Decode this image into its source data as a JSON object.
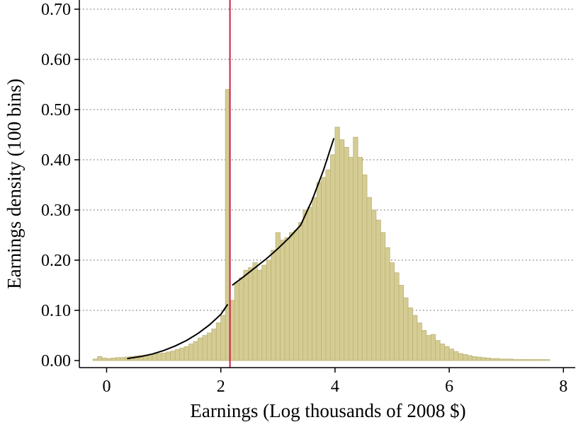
{
  "chart_data": {
    "type": "bar",
    "xlabel": "Earnings (Log thousands of 2008 $)",
    "ylabel": "Earnings density (100 bins)",
    "xlim": [
      -0.3,
      7.9
    ],
    "ylim": [
      -0.01,
      0.725
    ],
    "x_ticks": [
      "0",
      "2",
      "4",
      "6",
      "8"
    ],
    "y_ticks": [
      "0.00",
      "0.10",
      "0.20",
      "0.30",
      "0.40",
      "0.50",
      "0.60",
      "0.70"
    ],
    "grid": "horizontal dotted",
    "bin_width": 0.08,
    "bar_color": "#d4cc92",
    "bar_edge_color": "#bdb47a",
    "kink_line": {
      "x": 2.16,
      "color": "#cc1f4a"
    },
    "bins": [
      {
        "x": -0.2,
        "y": 0.003
      },
      {
        "x": -0.12,
        "y": 0.008
      },
      {
        "x": -0.04,
        "y": 0.005
      },
      {
        "x": 0.04,
        "y": 0.004
      },
      {
        "x": 0.12,
        "y": 0.005
      },
      {
        "x": 0.2,
        "y": 0.006
      },
      {
        "x": 0.28,
        "y": 0.006
      },
      {
        "x": 0.36,
        "y": 0.007
      },
      {
        "x": 0.44,
        "y": 0.008
      },
      {
        "x": 0.52,
        "y": 0.009
      },
      {
        "x": 0.6,
        "y": 0.01
      },
      {
        "x": 0.68,
        "y": 0.011
      },
      {
        "x": 0.76,
        "y": 0.012
      },
      {
        "x": 0.84,
        "y": 0.013
      },
      {
        "x": 0.92,
        "y": 0.014
      },
      {
        "x": 1.0,
        "y": 0.015
      },
      {
        "x": 1.08,
        "y": 0.017
      },
      {
        "x": 1.16,
        "y": 0.019
      },
      {
        "x": 1.24,
        "y": 0.022
      },
      {
        "x": 1.32,
        "y": 0.025
      },
      {
        "x": 1.4,
        "y": 0.028
      },
      {
        "x": 1.48,
        "y": 0.033
      },
      {
        "x": 1.56,
        "y": 0.038
      },
      {
        "x": 1.64,
        "y": 0.045
      },
      {
        "x": 1.72,
        "y": 0.05
      },
      {
        "x": 1.8,
        "y": 0.055
      },
      {
        "x": 1.88,
        "y": 0.063
      },
      {
        "x": 1.96,
        "y": 0.075
      },
      {
        "x": 2.04,
        "y": 0.09
      },
      {
        "x": 2.12,
        "y": 0.54
      },
      {
        "x": 2.2,
        "y": 0.12
      },
      {
        "x": 2.28,
        "y": 0.155
      },
      {
        "x": 2.36,
        "y": 0.165
      },
      {
        "x": 2.44,
        "y": 0.18
      },
      {
        "x": 2.52,
        "y": 0.185
      },
      {
        "x": 2.6,
        "y": 0.195
      },
      {
        "x": 2.68,
        "y": 0.18
      },
      {
        "x": 2.76,
        "y": 0.19
      },
      {
        "x": 2.84,
        "y": 0.2
      },
      {
        "x": 2.92,
        "y": 0.22
      },
      {
        "x": 3.0,
        "y": 0.255
      },
      {
        "x": 3.08,
        "y": 0.24
      },
      {
        "x": 3.16,
        "y": 0.245
      },
      {
        "x": 3.24,
        "y": 0.255
      },
      {
        "x": 3.32,
        "y": 0.26
      },
      {
        "x": 3.4,
        "y": 0.275
      },
      {
        "x": 3.48,
        "y": 0.3
      },
      {
        "x": 3.56,
        "y": 0.305
      },
      {
        "x": 3.64,
        "y": 0.325
      },
      {
        "x": 3.72,
        "y": 0.355
      },
      {
        "x": 3.8,
        "y": 0.365
      },
      {
        "x": 3.88,
        "y": 0.38
      },
      {
        "x": 3.96,
        "y": 0.41
      },
      {
        "x": 4.04,
        "y": 0.465
      },
      {
        "x": 4.12,
        "y": 0.44
      },
      {
        "x": 4.2,
        "y": 0.425
      },
      {
        "x": 4.28,
        "y": 0.405
      },
      {
        "x": 4.36,
        "y": 0.445
      },
      {
        "x": 4.44,
        "y": 0.405
      },
      {
        "x": 4.52,
        "y": 0.37
      },
      {
        "x": 4.6,
        "y": 0.325
      },
      {
        "x": 4.68,
        "y": 0.3
      },
      {
        "x": 4.76,
        "y": 0.28
      },
      {
        "x": 4.84,
        "y": 0.255
      },
      {
        "x": 4.92,
        "y": 0.225
      },
      {
        "x": 5.0,
        "y": 0.195
      },
      {
        "x": 5.08,
        "y": 0.175
      },
      {
        "x": 5.16,
        "y": 0.15
      },
      {
        "x": 5.24,
        "y": 0.125
      },
      {
        "x": 5.32,
        "y": 0.105
      },
      {
        "x": 5.4,
        "y": 0.09
      },
      {
        "x": 5.48,
        "y": 0.075
      },
      {
        "x": 5.56,
        "y": 0.06
      },
      {
        "x": 5.64,
        "y": 0.05
      },
      {
        "x": 5.72,
        "y": 0.052
      },
      {
        "x": 5.8,
        "y": 0.04
      },
      {
        "x": 5.88,
        "y": 0.033
      },
      {
        "x": 5.96,
        "y": 0.028
      },
      {
        "x": 6.04,
        "y": 0.023
      },
      {
        "x": 6.12,
        "y": 0.018
      },
      {
        "x": 6.2,
        "y": 0.014
      },
      {
        "x": 6.28,
        "y": 0.012
      },
      {
        "x": 6.36,
        "y": 0.01
      },
      {
        "x": 6.44,
        "y": 0.008
      },
      {
        "x": 6.52,
        "y": 0.007
      },
      {
        "x": 6.6,
        "y": 0.006
      },
      {
        "x": 6.68,
        "y": 0.005
      },
      {
        "x": 6.76,
        "y": 0.004
      },
      {
        "x": 6.84,
        "y": 0.004
      },
      {
        "x": 6.92,
        "y": 0.003
      },
      {
        "x": 7.0,
        "y": 0.003
      },
      {
        "x": 7.08,
        "y": 0.003
      },
      {
        "x": 7.16,
        "y": 0.002
      },
      {
        "x": 7.24,
        "y": 0.002
      },
      {
        "x": 7.32,
        "y": 0.002
      },
      {
        "x": 7.4,
        "y": 0.002
      },
      {
        "x": 7.48,
        "y": 0.002
      },
      {
        "x": 7.56,
        "y": 0.002
      },
      {
        "x": 7.64,
        "y": 0.002
      },
      {
        "x": 7.72,
        "y": 0.002
      }
    ],
    "fit_left": [
      {
        "x": 0.36,
        "y": 0.004
      },
      {
        "x": 0.6,
        "y": 0.008
      },
      {
        "x": 0.8,
        "y": 0.013
      },
      {
        "x": 1.0,
        "y": 0.02
      },
      {
        "x": 1.2,
        "y": 0.029
      },
      {
        "x": 1.4,
        "y": 0.04
      },
      {
        "x": 1.6,
        "y": 0.054
      },
      {
        "x": 1.8,
        "y": 0.071
      },
      {
        "x": 2.0,
        "y": 0.092
      },
      {
        "x": 2.12,
        "y": 0.112
      }
    ],
    "fit_right": [
      {
        "x": 2.2,
        "y": 0.15
      },
      {
        "x": 2.4,
        "y": 0.167
      },
      {
        "x": 2.6,
        "y": 0.185
      },
      {
        "x": 2.8,
        "y": 0.203
      },
      {
        "x": 3.0,
        "y": 0.223
      },
      {
        "x": 3.2,
        "y": 0.245
      },
      {
        "x": 3.4,
        "y": 0.27
      },
      {
        "x": 3.6,
        "y": 0.32
      },
      {
        "x": 3.8,
        "y": 0.38
      },
      {
        "x": 3.98,
        "y": 0.443
      }
    ]
  }
}
